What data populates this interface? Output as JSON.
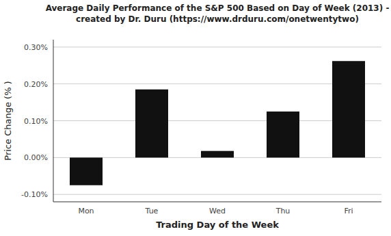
{
  "chart_data": {
    "type": "bar",
    "title": "Average Daily Performance of the S&P 500 Based on Day of Week (2013) -\ncreated by Dr. Duru (https://www.drduru.com/onetwentytwo)",
    "xlabel": "Trading Day of the Week",
    "ylabel": "Price Change (% )",
    "categories": [
      "Mon",
      "Tue",
      "Wed",
      "Thu",
      "Fri"
    ],
    "values": [
      -0.00075,
      0.00185,
      0.00018,
      0.00125,
      0.00262
    ],
    "color": "#111111",
    "ylim": [
      -0.0012,
      0.0032
    ],
    "yticks": [
      {
        "value": -0.001,
        "label": "-0.10%"
      },
      {
        "value": 0.0,
        "label": "0.00%"
      },
      {
        "value": 0.001,
        "label": "0.10%"
      },
      {
        "value": 0.002,
        "label": "0.20%"
      },
      {
        "value": 0.003,
        "label": "0.30%"
      }
    ],
    "grid": true
  }
}
